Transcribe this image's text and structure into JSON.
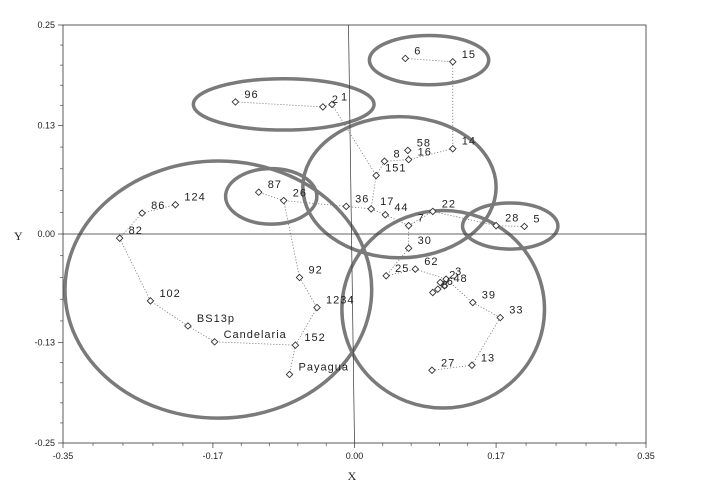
{
  "chart_data": {
    "type": "scatter",
    "xlabel": "X",
    "ylabel": "Y",
    "xlim": [
      -0.35,
      0.35
    ],
    "ylim": [
      -0.25,
      0.25
    ],
    "x_ticks": [
      {
        "value": -0.35,
        "label": "-0.35"
      },
      {
        "value": -0.17,
        "label": "-0.17"
      },
      {
        "value": 0.0,
        "label": "0.00"
      },
      {
        "value": 0.17,
        "label": "0.17"
      },
      {
        "value": 0.35,
        "label": "0.35"
      }
    ],
    "y_ticks": [
      {
        "value": 0.25,
        "label": "0.25"
      },
      {
        "value": 0.13,
        "label": "0.13"
      },
      {
        "value": 0.0,
        "label": "0.00"
      },
      {
        "value": -0.13,
        "label": "-0.13"
      },
      {
        "value": -0.25,
        "label": "-0.25"
      }
    ],
    "marker": "diamond",
    "points": [
      {
        "id": "p6",
        "label": "6",
        "x": 0.061,
        "y": 0.21
      },
      {
        "id": "p15",
        "label": "15",
        "x": 0.118,
        "y": 0.206
      },
      {
        "id": "p96",
        "label": "96",
        "x": -0.143,
        "y": 0.158
      },
      {
        "id": "p2",
        "label": "2",
        "x": -0.038,
        "y": 0.152
      },
      {
        "id": "p1",
        "label": "1",
        "x": -0.027,
        "y": 0.155
      },
      {
        "id": "p58",
        "label": "58",
        "x": 0.064,
        "y": 0.1
      },
      {
        "id": "p14",
        "label": "14",
        "x": 0.118,
        "y": 0.102
      },
      {
        "id": "p8",
        "label": "8",
        "x": 0.036,
        "y": 0.087
      },
      {
        "id": "p16",
        "label": "16",
        "x": 0.065,
        "y": 0.089
      },
      {
        "id": "p151",
        "label": "151",
        "x": 0.026,
        "y": 0.07
      },
      {
        "id": "p87",
        "label": "87",
        "x": -0.115,
        "y": 0.05
      },
      {
        "id": "p26",
        "label": "26",
        "x": -0.085,
        "y": 0.04
      },
      {
        "id": "p36",
        "label": "36",
        "x": -0.01,
        "y": 0.033
      },
      {
        "id": "p17",
        "label": "17",
        "x": 0.02,
        "y": 0.03
      },
      {
        "id": "p44",
        "label": "44",
        "x": 0.037,
        "y": 0.023
      },
      {
        "id": "p22",
        "label": "22",
        "x": 0.094,
        "y": 0.027
      },
      {
        "id": "p7",
        "label": "7",
        "x": 0.065,
        "y": 0.01
      },
      {
        "id": "p28",
        "label": "28",
        "x": 0.17,
        "y": 0.01
      },
      {
        "id": "p5",
        "label": "5",
        "x": 0.204,
        "y": 0.009
      },
      {
        "id": "p124",
        "label": "124",
        "x": -0.215,
        "y": 0.035
      },
      {
        "id": "p86",
        "label": "86",
        "x": -0.255,
        "y": 0.025
      },
      {
        "id": "p82",
        "label": "82",
        "x": -0.282,
        "y": -0.005
      },
      {
        "id": "p30",
        "label": "30",
        "x": 0.065,
        "y": -0.017
      },
      {
        "id": "p92",
        "label": "92",
        "x": -0.066,
        "y": -0.052
      },
      {
        "id": "p25",
        "label": "25",
        "x": 0.038,
        "y": -0.05
      },
      {
        "id": "p62",
        "label": "62",
        "x": 0.073,
        "y": -0.042
      },
      {
        "id": "p3",
        "label": "3",
        "x": 0.11,
        "y": -0.054
      },
      {
        "id": "p2b",
        "label": "2",
        "x": 0.103,
        "y": -0.058
      },
      {
        "id": "p48",
        "label": "48",
        "x": 0.108,
        "y": -0.062
      },
      {
        "id": "p6b",
        "label": "6",
        "x": 0.1,
        "y": -0.066
      },
      {
        "id": "p8b",
        "label": "8",
        "x": 0.094,
        "y": -0.07
      },
      {
        "id": "p102",
        "label": "102",
        "x": -0.245,
        "y": -0.08
      },
      {
        "id": "p1234",
        "label": "1234",
        "x": -0.045,
        "y": -0.088
      },
      {
        "id": "p39",
        "label": "39",
        "x": 0.142,
        "y": -0.082
      },
      {
        "id": "p33",
        "label": "33",
        "x": 0.175,
        "y": -0.1
      },
      {
        "id": "pBS13p",
        "label": "BS13p",
        "x": -0.2,
        "y": -0.11
      },
      {
        "id": "pCandelaria",
        "label": "Candelaria",
        "x": -0.168,
        "y": -0.129
      },
      {
        "id": "p152",
        "label": "152",
        "x": -0.071,
        "y": -0.133
      },
      {
        "id": "pPayagua",
        "label": "Payagua",
        "x": -0.078,
        "y": -0.168
      },
      {
        "id": "p27",
        "label": "27",
        "x": 0.093,
        "y": -0.163
      },
      {
        "id": "p13",
        "label": "13",
        "x": 0.141,
        "y": -0.157
      }
    ],
    "links": [
      [
        "p6",
        "p15"
      ],
      [
        "p15",
        "p14"
      ],
      [
        "p14",
        "p16"
      ],
      [
        "p16",
        "p58"
      ],
      [
        "p96",
        "p2"
      ],
      [
        "p2",
        "p1"
      ],
      [
        "p1",
        "p151"
      ],
      [
        "p151",
        "p8"
      ],
      [
        "p8",
        "p16"
      ],
      [
        "p151",
        "p17"
      ],
      [
        "p17",
        "p36"
      ],
      [
        "p36",
        "p26"
      ],
      [
        "p26",
        "p87"
      ],
      [
        "p17",
        "p44"
      ],
      [
        "p44",
        "p7"
      ],
      [
        "p7",
        "p22"
      ],
      [
        "p22",
        "p28"
      ],
      [
        "p28",
        "p5"
      ],
      [
        "p7",
        "p30"
      ],
      [
        "p30",
        "p25"
      ],
      [
        "p25",
        "p62"
      ],
      [
        "p62",
        "p3"
      ],
      [
        "p3",
        "p2b"
      ],
      [
        "p2b",
        "p48"
      ],
      [
        "p48",
        "p6b"
      ],
      [
        "p6b",
        "p8b"
      ],
      [
        "p3",
        "p39"
      ],
      [
        "p39",
        "p33"
      ],
      [
        "p33",
        "p13"
      ],
      [
        "p13",
        "p27"
      ],
      [
        "p26",
        "p92"
      ],
      [
        "p92",
        "p1234"
      ],
      [
        "p1234",
        "p152"
      ],
      [
        "p152",
        "pPayagua"
      ],
      [
        "p152",
        "pCandelaria"
      ],
      [
        "pCandelaria",
        "pBS13p"
      ],
      [
        "pBS13p",
        "p102"
      ],
      [
        "p102",
        "p82"
      ],
      [
        "p82",
        "p86"
      ],
      [
        "p86",
        "p124"
      ]
    ],
    "groups": [
      {
        "id": "g-6-15",
        "members": [
          "p6",
          "p15"
        ]
      },
      {
        "id": "g-96-2-1",
        "members": [
          "p96",
          "p2",
          "p1"
        ]
      },
      {
        "id": "g-central",
        "members": [
          "p58",
          "p14",
          "p8",
          "p16",
          "p151",
          "p36",
          "p17",
          "p44",
          "p22",
          "p7"
        ]
      },
      {
        "id": "g-87-26",
        "members": [
          "p87",
          "p26"
        ]
      },
      {
        "id": "g-28-5",
        "members": [
          "p28",
          "p5"
        ]
      },
      {
        "id": "g-left",
        "members": [
          "p124",
          "p86",
          "p82",
          "p102",
          "pBS13p",
          "pCandelaria",
          "p152",
          "pPayagua",
          "p92",
          "p1234"
        ]
      },
      {
        "id": "g-lower-right",
        "members": [
          "p30",
          "p25",
          "p62",
          "p3",
          "p2b",
          "p48",
          "p6b",
          "p8b",
          "p39",
          "p33",
          "p27",
          "p13"
        ]
      }
    ]
  }
}
